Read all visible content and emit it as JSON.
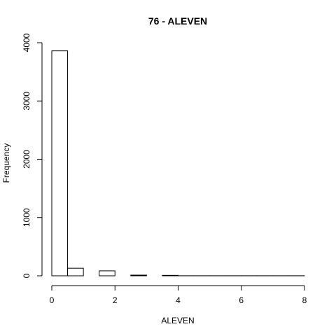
{
  "chart_data": {
    "type": "bar",
    "title": "76 - ALEVEN",
    "xlabel": "ALEVEN",
    "ylabel": "Frequency",
    "xlim": [
      0,
      8
    ],
    "ylim": [
      0,
      4000
    ],
    "x_ticks": [
      0,
      2,
      4,
      6,
      8
    ],
    "y_ticks": [
      0,
      1000,
      2000,
      3000,
      4000
    ],
    "bins": [
      {
        "x0": 0.0,
        "x1": 0.5,
        "count": 3860
      },
      {
        "x0": 0.5,
        "x1": 1.0,
        "count": 130
      },
      {
        "x0": 1.0,
        "x1": 1.5,
        "count": 0
      },
      {
        "x0": 1.5,
        "x1": 2.0,
        "count": 85
      },
      {
        "x0": 2.0,
        "x1": 2.5,
        "count": 0
      },
      {
        "x0": 2.5,
        "x1": 3.0,
        "count": 12
      },
      {
        "x0": 3.0,
        "x1": 3.5,
        "count": 0
      },
      {
        "x0": 3.5,
        "x1": 4.0,
        "count": 8
      },
      {
        "x0": 4.0,
        "x1": 4.5,
        "count": 1
      },
      {
        "x0": 4.5,
        "x1": 5.0,
        "count": 1
      },
      {
        "x0": 5.0,
        "x1": 5.5,
        "count": 1
      },
      {
        "x0": 5.5,
        "x1": 6.0,
        "count": 1
      },
      {
        "x0": 6.0,
        "x1": 6.5,
        "count": 1
      },
      {
        "x0": 6.5,
        "x1": 7.0,
        "count": 1
      },
      {
        "x0": 7.0,
        "x1": 7.5,
        "count": 1
      },
      {
        "x0": 7.5,
        "x1": 8.0,
        "count": 1
      }
    ],
    "grid": false,
    "legend": "none"
  }
}
